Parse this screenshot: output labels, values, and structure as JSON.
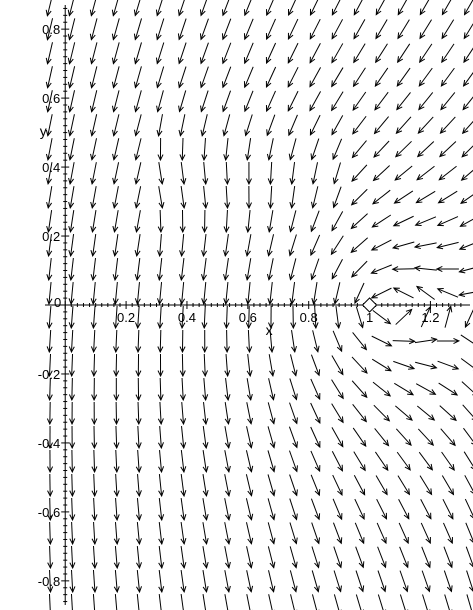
{
  "chart_data": {
    "type": "vector_field",
    "xlabel": "x",
    "ylabel": "y",
    "xlim": [
      -0.05,
      1.33
    ],
    "ylim": [
      -0.87,
      0.87
    ],
    "x_ticks": [
      {
        "value": 0,
        "label": "0"
      },
      {
        "value": 0.2,
        "label": "0.2"
      },
      {
        "value": 0.4,
        "label": "0.4"
      },
      {
        "value": 0.6,
        "label": "0.6"
      },
      {
        "value": 0.8,
        "label": "0.8"
      },
      {
        "value": 1.0,
        "label": "1"
      },
      {
        "value": 1.2,
        "label": "1.2"
      }
    ],
    "y_ticks": [
      {
        "value": 0.8,
        "label": "0.8"
      },
      {
        "value": 0.6,
        "label": "0.6"
      },
      {
        "value": 0.4,
        "label": "0.4"
      },
      {
        "value": 0.2,
        "label": "0.2"
      },
      {
        "value": -0.2,
        "label": "-0.2"
      },
      {
        "value": -0.4,
        "label": "-0.4"
      },
      {
        "value": -0.6,
        "label": "-0.6"
      },
      {
        "value": -0.8,
        "label": "-0.8"
      }
    ],
    "field": {
      "x_range": [
        -0.05,
        1.33
      ],
      "y_range": [
        -0.87,
        0.87
      ],
      "columns": 20,
      "rows": 26,
      "equilibrium": [
        1.0,
        0.0
      ]
    },
    "marker": {
      "x": 1.0,
      "y": 0.0,
      "shape": "diamond"
    },
    "grid": false,
    "colors": {
      "arrow": "#000000",
      "axis": "#000000",
      "background": "#ffffff"
    }
  }
}
